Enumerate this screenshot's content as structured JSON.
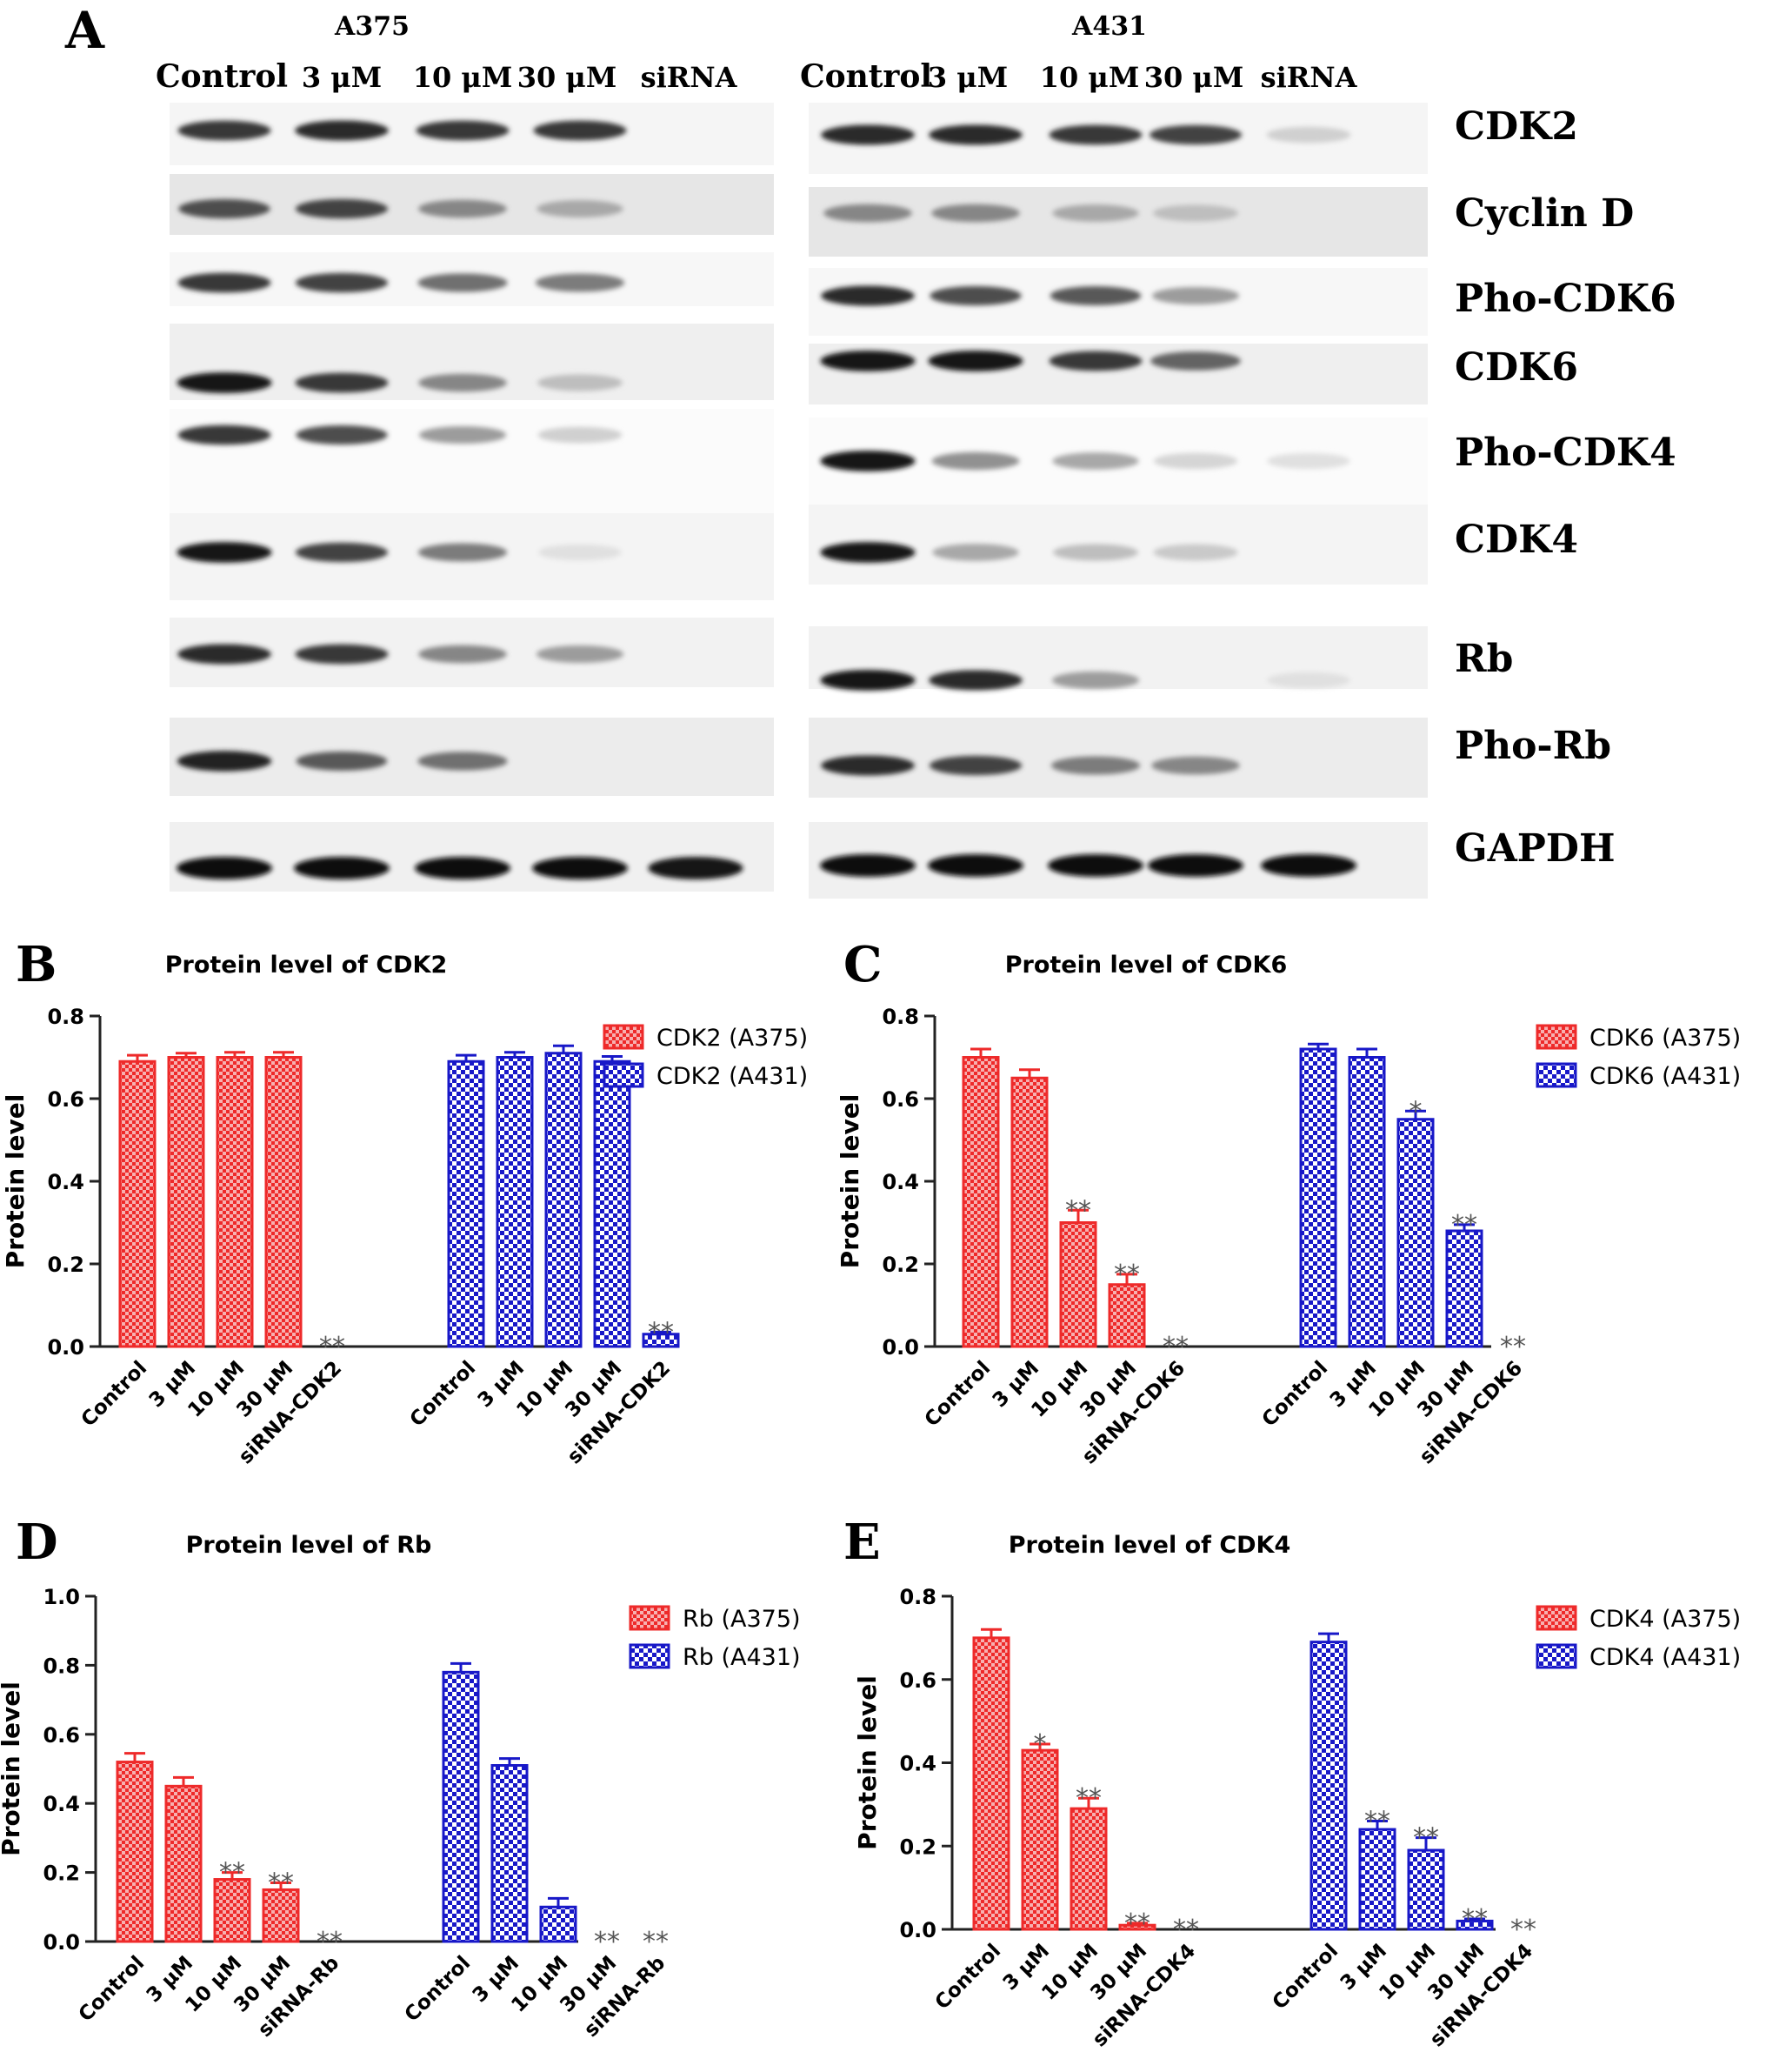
{
  "panel_a": {
    "letter": "A",
    "cell_lines": [
      {
        "name": "A375",
        "lanes": [
          "Control",
          "3 μM",
          "10 μM",
          "30 μM",
          "siRNA"
        ]
      },
      {
        "name": "A431",
        "lanes": [
          "Control",
          "3 μM",
          "10 μM",
          "30 μM",
          "siRNA"
        ]
      }
    ],
    "proteins": [
      "CDK2",
      "Cyclin D",
      "Pho-CDK6",
      "CDK6",
      "Pho-CDK4",
      "CDK4",
      "Rb",
      "Pho-Rb",
      "GAPDH"
    ],
    "band_intensity": {
      "A375": [
        [
          0.8,
          0.85,
          0.8,
          0.8,
          0.0
        ],
        [
          0.7,
          0.75,
          0.45,
          0.3,
          0.0
        ],
        [
          0.8,
          0.75,
          0.55,
          0.5,
          0.0
        ],
        [
          0.95,
          0.8,
          0.45,
          0.2,
          0.0
        ],
        [
          0.8,
          0.7,
          0.35,
          0.12,
          0.0
        ],
        [
          0.95,
          0.75,
          0.5,
          0.05,
          0.0
        ],
        [
          0.85,
          0.8,
          0.45,
          0.35,
          0.0
        ],
        [
          0.9,
          0.65,
          0.55,
          0.0,
          0.0
        ],
        [
          1.0,
          1.0,
          1.0,
          1.0,
          0.95
        ]
      ],
      "A431": [
        [
          0.85,
          0.85,
          0.8,
          0.75,
          0.12
        ],
        [
          0.45,
          0.45,
          0.3,
          0.2,
          0.0
        ],
        [
          0.85,
          0.7,
          0.65,
          0.35,
          0.0
        ],
        [
          0.95,
          0.95,
          0.8,
          0.6,
          0.0
        ],
        [
          0.95,
          0.4,
          0.3,
          0.1,
          0.05
        ],
        [
          0.95,
          0.3,
          0.2,
          0.15,
          0.0
        ],
        [
          0.95,
          0.85,
          0.35,
          0.0,
          0.05
        ],
        [
          0.85,
          0.75,
          0.5,
          0.45,
          0.0
        ],
        [
          1.0,
          1.0,
          1.0,
          1.0,
          1.0
        ]
      ]
    }
  },
  "chart_data": [
    {
      "panel": "B",
      "type": "bar",
      "title": "Protein level of CDK2",
      "ylabel": "Protein level",
      "ylim": [
        0,
        0.8
      ],
      "yticks": [
        "0.0",
        "0.2",
        "0.4",
        "0.6",
        "0.8"
      ],
      "series": [
        {
          "name": "CDK2 (A375)",
          "color": "#ee2a2a",
          "categories": [
            "Control",
            "3 μM",
            "10 μM",
            "30 μM",
            "siRNA-CDK2"
          ],
          "values": [
            0.69,
            0.7,
            0.7,
            0.7,
            0.0
          ],
          "errors": [
            0.015,
            0.01,
            0.012,
            0.012,
            0.0
          ],
          "sig": [
            "",
            "",
            "",
            "",
            "**"
          ]
        },
        {
          "name": "CDK2 (A431)",
          "color": "#1818c8",
          "categories": [
            "Control",
            "3 μM",
            "10 μM",
            "30 μM",
            "siRNA-CDK2"
          ],
          "values": [
            0.69,
            0.7,
            0.71,
            0.69,
            0.03
          ],
          "errors": [
            0.015,
            0.012,
            0.018,
            0.012,
            0.005
          ],
          "sig": [
            "",
            "",
            "",
            "",
            "**"
          ]
        }
      ]
    },
    {
      "panel": "C",
      "type": "bar",
      "title": "Protein level  of CDK6",
      "ylabel": "Protein level",
      "ylim": [
        0,
        0.8
      ],
      "yticks": [
        "0.0",
        "0.2",
        "0.4",
        "0.6",
        "0.8"
      ],
      "series": [
        {
          "name": "CDK6 (A375)",
          "color": "#ee2a2a",
          "categories": [
            "Control",
            "3 μM",
            "10 μM",
            "30 μM",
            "siRNA-CDK6"
          ],
          "values": [
            0.7,
            0.65,
            0.3,
            0.15,
            0.0
          ],
          "errors": [
            0.02,
            0.02,
            0.03,
            0.025,
            0.0
          ],
          "sig": [
            "",
            "",
            "**",
            "**",
            "**"
          ]
        },
        {
          "name": "CDK6 (A431)",
          "color": "#1818c8",
          "categories": [
            "Control",
            "3 μM",
            "10 μM",
            "30 μM",
            "siRNA-CDK6"
          ],
          "values": [
            0.72,
            0.7,
            0.55,
            0.28,
            0.0
          ],
          "errors": [
            0.012,
            0.02,
            0.02,
            0.015,
            0.0
          ],
          "sig": [
            "",
            "",
            "*",
            "**",
            "**"
          ]
        }
      ]
    },
    {
      "panel": "D",
      "type": "bar",
      "title": "Protein level of Rb",
      "ylabel": "Protein level",
      "ylim": [
        0,
        1.0
      ],
      "yticks": [
        "0.0",
        "0.2",
        "0.4",
        "0.6",
        "0.8",
        "1.0"
      ],
      "series": [
        {
          "name": "Rb (A375)",
          "color": "#ee2a2a",
          "categories": [
            "Control",
            "3 μM",
            "10 μM",
            "30 μM",
            "siRNA-Rb"
          ],
          "values": [
            0.52,
            0.45,
            0.18,
            0.15,
            0.0
          ],
          "errors": [
            0.025,
            0.025,
            0.02,
            0.02,
            0.0
          ],
          "sig": [
            "",
            "",
            "**",
            "**",
            "**"
          ]
        },
        {
          "name": "Rb (A431)",
          "color": "#1818c8",
          "categories": [
            "Control",
            "3 μM",
            "10 μM",
            "30 μM",
            "siRNA-Rb"
          ],
          "values": [
            0.78,
            0.51,
            0.1,
            0.0,
            0.0
          ],
          "errors": [
            0.025,
            0.02,
            0.025,
            0.0,
            0.0
          ],
          "sig": [
            "",
            "",
            "",
            "**",
            "**"
          ]
        }
      ]
    },
    {
      "panel": "E",
      "type": "bar",
      "title": "Protein level of CDK4",
      "ylabel": "Protein level",
      "ylim": [
        0,
        0.8
      ],
      "yticks": [
        "0.0",
        "0.2",
        "0.4",
        "0.6",
        "0.8"
      ],
      "series": [
        {
          "name": "CDK4 (A375)",
          "color": "#ee2a2a",
          "categories": [
            "Control",
            "3 μM",
            "10 μM",
            "30 μM",
            "siRNA-CDK4"
          ],
          "values": [
            0.7,
            0.43,
            0.29,
            0.01,
            0.0
          ],
          "errors": [
            0.02,
            0.015,
            0.025,
            0.005,
            0.0
          ],
          "sig": [
            "",
            "*",
            "**",
            "**",
            "**"
          ]
        },
        {
          "name": "CDK4 (A431)",
          "color": "#1818c8",
          "categories": [
            "Control",
            "3 μM",
            "10 μM",
            "30 μM",
            "siRNA-CDK4"
          ],
          "values": [
            0.69,
            0.24,
            0.19,
            0.02,
            0.0
          ],
          "errors": [
            0.02,
            0.02,
            0.03,
            0.005,
            0.0
          ],
          "sig": [
            "",
            "**",
            "**",
            "**",
            "**"
          ]
        }
      ]
    }
  ]
}
